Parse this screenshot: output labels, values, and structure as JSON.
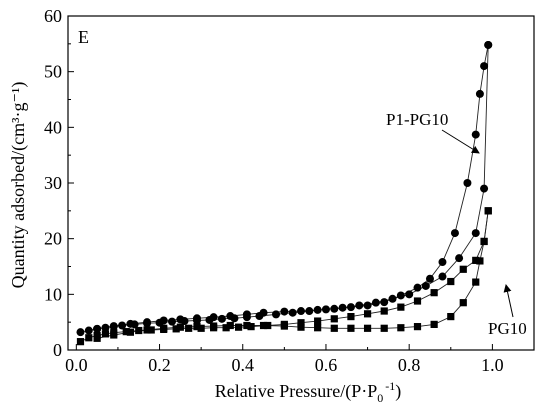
{
  "panel_label": "E",
  "chart_data": {
    "type": "scatter",
    "title": "",
    "xlabel": "Relative Pressure/(P·P",
    "xlabel_sub": "0",
    "xlabel_sup": "-1",
    "xlabel_close": ")",
    "ylabel": "Quantity adsorbed/(cm³·g⁻¹)",
    "xlim": [
      -0.02,
      1.1
    ],
    "ylim": [
      0,
      60
    ],
    "xticks": [
      0.0,
      0.2,
      0.4,
      0.6,
      0.8,
      1.0
    ],
    "xtick_labels": [
      "0.0",
      "0.2",
      "0.4",
      "0.6",
      "0.8",
      "1.0"
    ],
    "yticks": [
      0,
      10,
      20,
      30,
      40,
      50,
      60
    ],
    "ytick_labels": [
      "0",
      "10",
      "20",
      "30",
      "40",
      "50",
      "60"
    ],
    "grid": false,
    "series": [
      {
        "name": "P1-PG10",
        "marker": "circle",
        "adsorption": {
          "x": [
            0.01,
            0.03,
            0.05,
            0.07,
            0.09,
            0.11,
            0.14,
            0.17,
            0.2,
            0.23,
            0.26,
            0.29,
            0.32,
            0.35,
            0.38,
            0.41,
            0.44,
            0.48,
            0.52,
            0.56,
            0.6,
            0.64,
            0.68,
            0.72,
            0.76,
            0.8,
            0.84,
            0.88,
            0.92,
            0.96,
            0.98,
            0.99
          ],
          "y": [
            3.2,
            3.5,
            3.8,
            4.0,
            4.2,
            4.4,
            4.6,
            4.8,
            4.9,
            5.1,
            5.2,
            5.3,
            5.4,
            5.6,
            5.7,
            5.9,
            6.1,
            6.4,
            6.7,
            7.0,
            7.3,
            7.6,
            8.0,
            8.5,
            9.2,
            10.0,
            11.5,
            13.2,
            16.5,
            21.0,
            29.0,
            54.8
          ]
        },
        "desorption": {
          "x": [
            0.99,
            0.98,
            0.97,
            0.96,
            0.94,
            0.91,
            0.88,
            0.85,
            0.82,
            0.78,
            0.74,
            0.7,
            0.66,
            0.62,
            0.58,
            0.54,
            0.5,
            0.45,
            0.41,
            0.37,
            0.33,
            0.29,
            0.25,
            0.21,
            0.17,
            0.13,
            0.09,
            0.05
          ],
          "y": [
            54.8,
            51.0,
            46.0,
            38.7,
            30.0,
            21.0,
            15.8,
            12.8,
            11.2,
            9.8,
            8.6,
            8.0,
            7.7,
            7.4,
            7.2,
            7.0,
            6.9,
            6.7,
            6.4,
            6.1,
            5.9,
            5.7,
            5.5,
            5.3,
            5.0,
            4.7,
            4.3,
            3.8
          ]
        }
      },
      {
        "name": "PG10",
        "marker": "square",
        "adsorption": {
          "x": [
            0.01,
            0.03,
            0.05,
            0.07,
            0.09,
            0.12,
            0.15,
            0.18,
            0.21,
            0.24,
            0.27,
            0.3,
            0.33,
            0.36,
            0.39,
            0.42,
            0.46,
            0.5,
            0.54,
            0.58,
            0.62,
            0.66,
            0.7,
            0.74,
            0.78,
            0.82,
            0.86,
            0.9,
            0.93,
            0.96,
            0.98,
            0.99
          ],
          "y": [
            1.5,
            2.2,
            2.6,
            2.9,
            3.1,
            3.3,
            3.5,
            3.6,
            3.7,
            3.8,
            3.9,
            3.9,
            4.0,
            4.0,
            4.1,
            4.2,
            4.4,
            4.6,
            4.9,
            5.2,
            5.6,
            6.0,
            6.5,
            7.0,
            7.7,
            8.8,
            10.3,
            12.3,
            14.5,
            16.1,
            19.5,
            25.0
          ]
        },
        "desorption": {
          "x": [
            0.99,
            0.98,
            0.97,
            0.96,
            0.93,
            0.9,
            0.86,
            0.82,
            0.78,
            0.74,
            0.7,
            0.66,
            0.62,
            0.58,
            0.54,
            0.5,
            0.45,
            0.41,
            0.37,
            0.33,
            0.29,
            0.25,
            0.21,
            0.17,
            0.13,
            0.09,
            0.05
          ],
          "y": [
            25.0,
            19.5,
            16.0,
            12.2,
            8.5,
            6.0,
            4.6,
            4.2,
            4.0,
            3.9,
            3.9,
            3.9,
            3.9,
            4.0,
            4.1,
            4.3,
            4.4,
            4.4,
            4.4,
            4.3,
            4.2,
            4.1,
            3.9,
            3.6,
            3.2,
            2.7,
            2.1
          ]
        }
      }
    ],
    "annotations": [
      {
        "text": "P1-PG10",
        "arrow_to": [
          0.88,
          35.0
        ]
      },
      {
        "text": "PG10",
        "arrow_to": [
          0.985,
          12.2
        ]
      }
    ]
  }
}
